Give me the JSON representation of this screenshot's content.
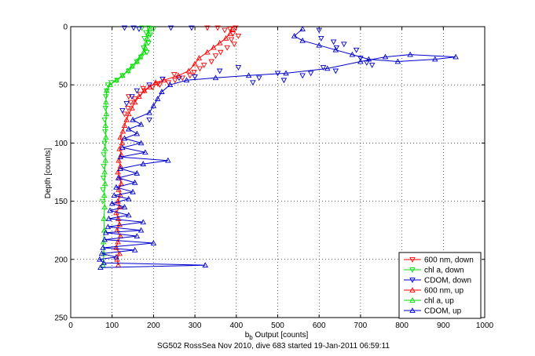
{
  "chart_data": {
    "type": "scatter",
    "title": "SG502 RossSea Nov 2010, dive 683 started 19-Jan-2011 06:59:11",
    "xlabel_main": "b",
    "xlabel_sub": "b",
    "xlabel_rest": " Output [counts]",
    "ylabel": "Depth [counts]",
    "xlim": [
      0,
      1000
    ],
    "ylim": [
      0,
      250
    ],
    "y_reversed": true,
    "grid": true,
    "legend_position": "bottom-right",
    "xticks": [
      "0",
      "100",
      "200",
      "300",
      "400",
      "500",
      "600",
      "700",
      "800",
      "900",
      "1000"
    ],
    "yticks": [
      "0",
      "50",
      "100",
      "150",
      "200",
      "250"
    ],
    "series": [
      {
        "name": "600 nm, down",
        "color": "#ff0000",
        "marker": "triangle-down",
        "line": false,
        "points": [
          [
            330,
            1
          ],
          [
            355,
            1
          ],
          [
            372,
            3
          ],
          [
            385,
            2
          ],
          [
            392,
            6
          ],
          [
            398,
            1
          ],
          [
            405,
            8
          ],
          [
            388,
            11
          ],
          [
            395,
            15
          ],
          [
            378,
            18
          ],
          [
            362,
            22
          ],
          [
            350,
            25
          ],
          [
            340,
            30
          ],
          [
            322,
            33
          ],
          [
            312,
            36
          ],
          [
            298,
            39
          ],
          [
            288,
            42
          ],
          [
            270,
            44
          ],
          [
            252,
            46
          ],
          [
            236,
            48
          ],
          [
            215,
            50
          ],
          [
            198,
            52
          ],
          [
            178,
            55
          ],
          [
            168,
            58
          ],
          [
            155,
            62
          ],
          [
            145,
            65
          ],
          [
            138,
            70
          ],
          [
            130,
            75
          ],
          [
            140,
            60
          ],
          [
            175,
            53
          ],
          [
            210,
            49
          ],
          [
            250,
            41
          ]
        ]
      },
      {
        "name": "chl a, down",
        "color": "#00dd00",
        "marker": "triangle-down",
        "line": false,
        "points": [
          [
            172,
            1
          ],
          [
            188,
            1
          ],
          [
            200,
            2
          ],
          [
            182,
            5
          ],
          [
            192,
            7
          ],
          [
            178,
            10
          ],
          [
            188,
            14
          ],
          [
            176,
            18
          ],
          [
            184,
            22
          ],
          [
            170,
            26
          ],
          [
            160,
            30
          ],
          [
            150,
            34
          ],
          [
            140,
            38
          ],
          [
            125,
            42
          ],
          [
            112,
            46
          ],
          [
            98,
            48
          ],
          [
            90,
            50
          ],
          [
            87,
            55
          ],
          [
            85,
            60
          ],
          [
            84,
            70
          ],
          [
            82,
            80
          ],
          [
            83,
            90
          ],
          [
            82,
            100
          ],
          [
            80,
            110
          ],
          [
            80,
            120
          ],
          [
            79,
            130
          ],
          [
            78,
            140
          ],
          [
            77,
            150
          ]
        ]
      },
      {
        "name": "CDOM, down",
        "color": "#0000cc",
        "marker": "triangle-down",
        "line": false,
        "points": [
          [
            130,
            1
          ],
          [
            152,
            1
          ],
          [
            165,
            2
          ],
          [
            242,
            1
          ],
          [
            292,
            1
          ],
          [
            600,
            3
          ],
          [
            605,
            10
          ],
          [
            635,
            13
          ],
          [
            660,
            15
          ],
          [
            642,
            18
          ],
          [
            690,
            20
          ],
          [
            700,
            27
          ],
          [
            715,
            31
          ],
          [
            728,
            33
          ],
          [
            610,
            35
          ],
          [
            640,
            38
          ],
          [
            580,
            40
          ],
          [
            560,
            42
          ],
          [
            515,
            46
          ],
          [
            500,
            40
          ],
          [
            455,
            44
          ],
          [
            440,
            48
          ],
          [
            405,
            35
          ],
          [
            360,
            38
          ],
          [
            300,
            43
          ],
          [
            262,
            44
          ],
          [
            222,
            45
          ],
          [
            190,
            50
          ],
          [
            160,
            55
          ],
          [
            148,
            60
          ],
          [
            135,
            66
          ],
          [
            125,
            72
          ],
          [
            190,
            80
          ]
        ]
      },
      {
        "name": "600 nm, up",
        "color": "#ff0000",
        "marker": "triangle-up",
        "line": true,
        "points": [
          [
            115,
            205
          ],
          [
            112,
            200
          ],
          [
            118,
            195
          ],
          [
            110,
            190
          ],
          [
            114,
            185
          ],
          [
            120,
            180
          ],
          [
            112,
            175
          ],
          [
            118,
            170
          ],
          [
            115,
            165
          ],
          [
            110,
            160
          ],
          [
            118,
            155
          ],
          [
            114,
            150
          ],
          [
            120,
            145
          ],
          [
            116,
            140
          ],
          [
            122,
            135
          ],
          [
            118,
            130
          ],
          [
            114,
            125
          ],
          [
            120,
            120
          ],
          [
            116,
            115
          ],
          [
            122,
            110
          ],
          [
            118,
            105
          ],
          [
            124,
            100
          ],
          [
            120,
            95
          ],
          [
            126,
            90
          ],
          [
            130,
            85
          ],
          [
            135,
            80
          ],
          [
            140,
            75
          ],
          [
            148,
            70
          ],
          [
            155,
            65
          ],
          [
            165,
            60
          ],
          [
            178,
            55
          ],
          [
            190,
            52
          ],
          [
            205,
            48
          ],
          [
            225,
            46
          ],
          [
            260,
            42
          ],
          [
            285,
            38
          ],
          [
            300,
            32
          ],
          [
            310,
            27
          ],
          [
            330,
            22
          ],
          [
            345,
            18
          ],
          [
            360,
            14
          ],
          [
            375,
            10
          ],
          [
            385,
            6
          ],
          [
            390,
            2
          ]
        ]
      },
      {
        "name": "chl a, up",
        "color": "#00dd00",
        "marker": "triangle-up",
        "line": true,
        "points": [
          [
            78,
            205
          ],
          [
            80,
            195
          ],
          [
            79,
            185
          ],
          [
            81,
            175
          ],
          [
            80,
            165
          ],
          [
            82,
            155
          ],
          [
            81,
            145
          ],
          [
            83,
            135
          ],
          [
            82,
            125
          ],
          [
            84,
            115
          ],
          [
            83,
            105
          ],
          [
            85,
            95
          ],
          [
            84,
            85
          ],
          [
            86,
            75
          ],
          [
            85,
            65
          ],
          [
            87,
            55
          ],
          [
            95,
            50
          ],
          [
            110,
            46
          ],
          [
            125,
            42
          ],
          [
            138,
            38
          ],
          [
            148,
            34
          ],
          [
            160,
            30
          ],
          [
            168,
            26
          ],
          [
            176,
            22
          ],
          [
            180,
            18
          ],
          [
            182,
            14
          ],
          [
            185,
            10
          ],
          [
            188,
            6
          ],
          [
            190,
            2
          ]
        ]
      },
      {
        "name": "CDOM, up",
        "color": "#0000cc",
        "marker": "triangle-up",
        "line": true,
        "points": [
          [
            72,
            207
          ],
          [
            325,
            205
          ],
          [
            80,
            203
          ],
          [
            70,
            200
          ],
          [
            110,
            198
          ],
          [
            75,
            195
          ],
          [
            155,
            192
          ],
          [
            78,
            190
          ],
          [
            200,
            186
          ],
          [
            82,
            183
          ],
          [
            160,
            180
          ],
          [
            85,
            177
          ],
          [
            170,
            175
          ],
          [
            90,
            172
          ],
          [
            175,
            168
          ],
          [
            92,
            165
          ],
          [
            140,
            162
          ],
          [
            95,
            158
          ],
          [
            130,
            155
          ],
          [
            100,
            152
          ],
          [
            140,
            148
          ],
          [
            105,
            145
          ],
          [
            150,
            142
          ],
          [
            110,
            138
          ],
          [
            155,
            134
          ],
          [
            115,
            130
          ],
          [
            160,
            126
          ],
          [
            120,
            122
          ],
          [
            175,
            118
          ],
          [
            235,
            115
          ],
          [
            120,
            112
          ],
          [
            180,
            108
          ],
          [
            125,
            104
          ],
          [
            170,
            100
          ],
          [
            130,
            96
          ],
          [
            160,
            92
          ],
          [
            140,
            88
          ],
          [
            170,
            84
          ],
          [
            150,
            80
          ],
          [
            190,
            74
          ],
          [
            200,
            68
          ],
          [
            210,
            62
          ],
          [
            220,
            56
          ],
          [
            240,
            50
          ],
          [
            280,
            46
          ],
          [
            350,
            44
          ],
          [
            430,
            42
          ],
          [
            520,
            40
          ],
          [
            620,
            36
          ],
          [
            700,
            30
          ],
          [
            760,
            26
          ],
          [
            820,
            24
          ],
          [
            930,
            26
          ],
          [
            880,
            28
          ],
          [
            790,
            30
          ],
          [
            720,
            28
          ],
          [
            680,
            24
          ],
          [
            640,
            20
          ],
          [
            600,
            16
          ],
          [
            560,
            12
          ],
          [
            540,
            8
          ],
          [
            560,
            2
          ]
        ]
      }
    ]
  }
}
